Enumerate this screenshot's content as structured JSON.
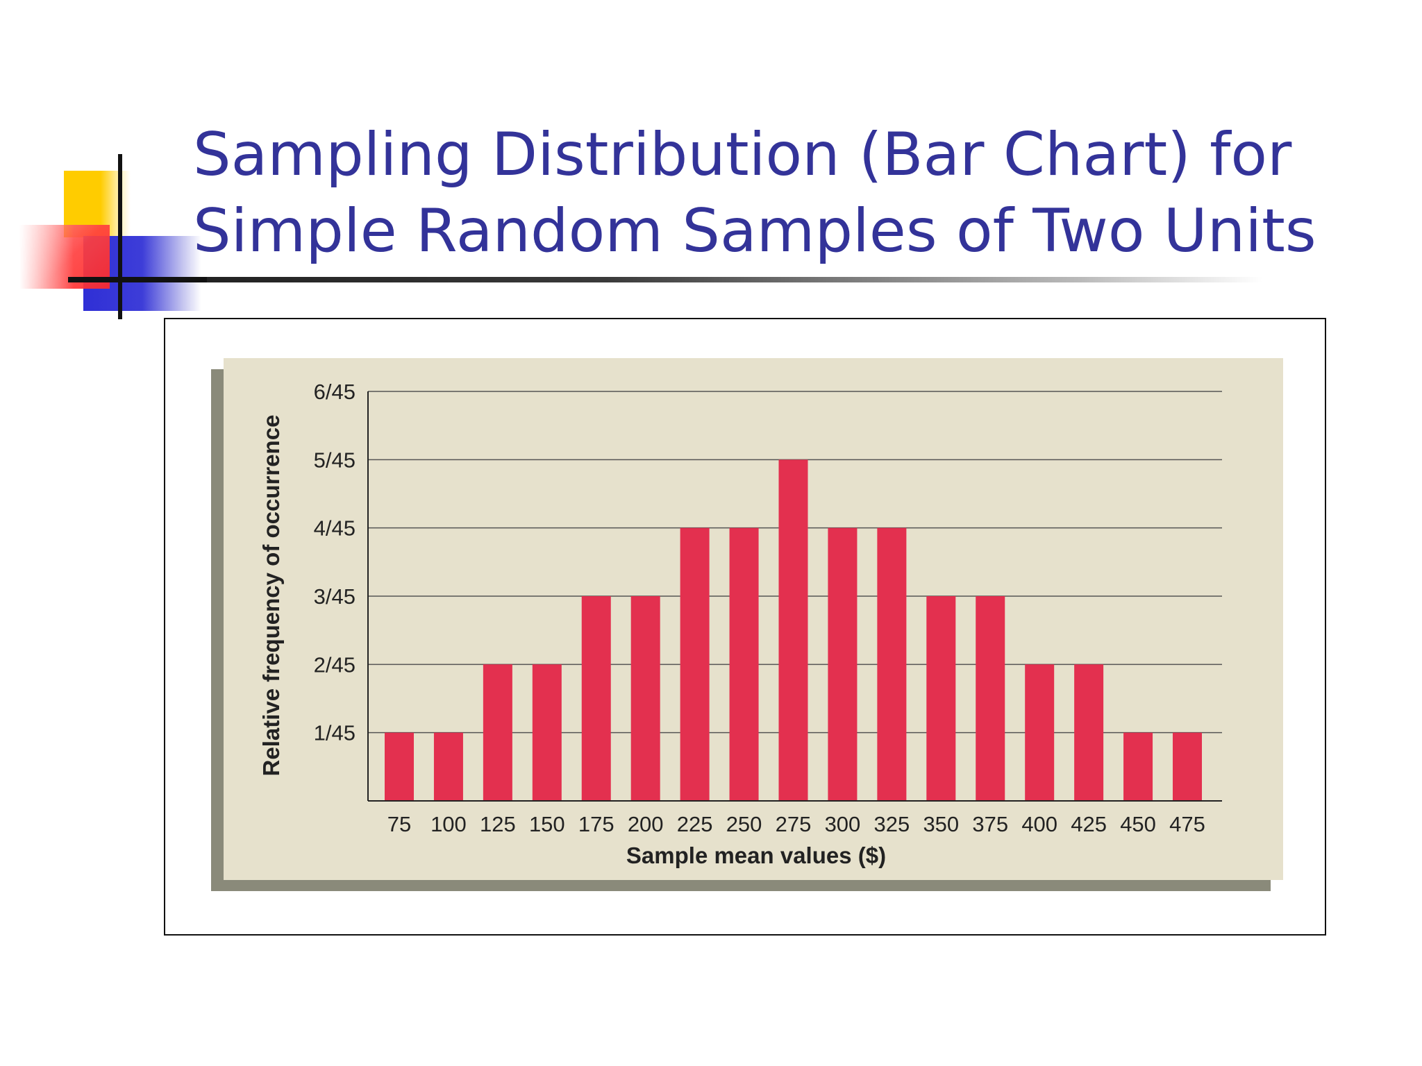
{
  "slide": {
    "title_line1": "Sampling Distribution (Bar Chart) for",
    "title_line2": "Simple Random Samples of Two Units"
  },
  "colors": {
    "title": "#333399",
    "bar": "#e3304f",
    "panel": "#e6e1cc",
    "shadow": "#8a8a7a",
    "axis": "#222222",
    "grid": "#555555"
  },
  "chart_data": {
    "type": "bar",
    "xlabel": "Sample mean values ($)",
    "ylabel": "Relative frequency of occurrence",
    "categories": [
      "75",
      "100",
      "125",
      "150",
      "175",
      "200",
      "225",
      "250",
      "275",
      "300",
      "325",
      "350",
      "375",
      "400",
      "425",
      "450",
      "475"
    ],
    "values": [
      1,
      1,
      2,
      2,
      3,
      3,
      4,
      4,
      5,
      4,
      4,
      3,
      3,
      2,
      2,
      1,
      1
    ],
    "value_unit": "forty-fifths",
    "ylim": [
      0,
      6
    ],
    "yticks": [
      1,
      2,
      3,
      4,
      5,
      6
    ],
    "ytick_labels": [
      "1/45",
      "2/45",
      "3/45",
      "4/45",
      "5/45",
      "6/45"
    ],
    "grid": true
  }
}
